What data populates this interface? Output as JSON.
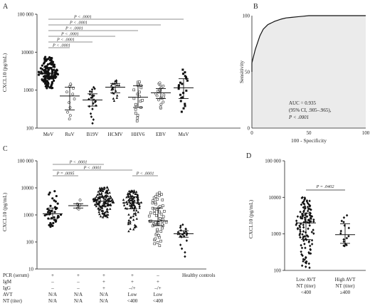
{
  "figure": {
    "panels": {
      "A": {
        "label": "A",
        "ylabel": "CXCL10 (pg/mL)",
        "yticks": [
          "100 000",
          "10000",
          "1000",
          "100"
        ],
        "pvalues": [
          "P < .0001",
          "P < .0001",
          "P < .0001",
          "P < .0001",
          "P < .0001",
          "P < .0001"
        ]
      },
      "B": {
        "label": "B",
        "ylabel": "Sensitivity",
        "xlabel": "100 - Specificity",
        "ticks": [
          "0",
          "50",
          "100"
        ],
        "auc_line1": "AUC = 0.935",
        "auc_line2": "(95% CI, .905–.965),",
        "auc_line3": "P < .0001"
      },
      "C": {
        "label": "C",
        "ylabel": "CXCL10 (pg/mL)",
        "yticks": [
          "100 000",
          "10000",
          "1000",
          "100",
          "10"
        ],
        "pvalues": [
          "P < .0001",
          "P < .0001",
          "P = .0095",
          "P < .0001"
        ],
        "row_labels": [
          "PCR (serum)",
          "IgM",
          "IgG",
          "AVT",
          "NT (titer)"
        ],
        "columns": [
          {
            "pcr": "+",
            "igm": "–",
            "igg": "–",
            "avt": "N/A",
            "nt": "N/A"
          },
          {
            "pcr": "+",
            "igm": "–",
            "igg": "–",
            "avt": "N/A",
            "nt": "N/A"
          },
          {
            "pcr": "+",
            "igm": "+",
            "igg": "+",
            "avt": "N/A",
            "nt": "N/A"
          },
          {
            "pcr": "+",
            "igm": "+",
            "igg": "–/+",
            "avt": "Low",
            "nt": "<400"
          },
          {
            "pcr": "–",
            "igm": "+",
            "igg": "–/+",
            "avt": "Low",
            "nt": "<400"
          }
        ],
        "healthy_label": "Healthy controls"
      },
      "D": {
        "label": "D",
        "ylabel": "CXCL10 (pg/mL)",
        "yticks": [
          "100 000",
          "10000",
          "1000",
          "100"
        ],
        "pvalue": "P = .0402",
        "groups": [
          {
            "l1": "Low AVT",
            "l2": "NT (titer)",
            "l3": "<400"
          },
          {
            "l1": "High AVT",
            "l2": "NT (titer)",
            "l3": "≥400"
          }
        ]
      }
    }
  },
  "chart_data": [
    {
      "type": "scatter",
      "panel": "A",
      "ylabel": "CXCL10 (pg/mL)",
      "yscale": "log",
      "ylim": [
        100,
        100000
      ],
      "categories": [
        "MeV",
        "RuV",
        "B19V",
        "HCMV",
        "HHV6",
        "EBV",
        "MuV"
      ],
      "n": [
        140,
        12,
        22,
        20,
        22,
        22,
        22
      ],
      "median": [
        2800,
        700,
        550,
        1200,
        650,
        850,
        1150
      ],
      "q1": [
        2000,
        300,
        380,
        850,
        350,
        600,
        600
      ],
      "q3": [
        4000,
        1200,
        800,
        1500,
        1300,
        1100,
        2000
      ],
      "min": [
        1100,
        150,
        120,
        500,
        150,
        300,
        250
      ],
      "max": [
        7500,
        1500,
        1200,
        1900,
        1700,
        1600,
        3500
      ],
      "comparisons": [
        [
          "MeV",
          "RuV"
        ],
        [
          "MeV",
          "B19V"
        ],
        [
          "MeV",
          "HCMV"
        ],
        [
          "MeV",
          "HHV6"
        ],
        [
          "MeV",
          "EBV"
        ],
        [
          "MeV",
          "MuV"
        ]
      ]
    },
    {
      "type": "line",
      "panel": "B",
      "xlabel": "100 - Specificity",
      "ylabel": "Sensitivity",
      "xlim": [
        0,
        100
      ],
      "ylim": [
        0,
        100
      ],
      "x": [
        0,
        0,
        1,
        2,
        3,
        4,
        5,
        6,
        7,
        8,
        9,
        10,
        12,
        14,
        16,
        18,
        20,
        23,
        26,
        30,
        35,
        40,
        45,
        50,
        100
      ],
      "y": [
        50,
        58,
        62,
        66,
        70,
        73,
        76,
        79,
        82,
        84,
        86,
        88,
        90,
        92,
        93,
        94,
        95,
        96,
        97,
        98,
        98.5,
        99,
        99.5,
        100,
        100
      ],
      "auc": 0.935,
      "ci": [
        0.905,
        0.965
      ]
    },
    {
      "type": "scatter",
      "panel": "C",
      "ylabel": "CXCL10 (pg/mL)",
      "yscale": "log",
      "ylim": [
        10,
        100000
      ],
      "groups": [
        "+/–/–/N/A",
        "+/–/–/N/A",
        "+/+/+/N/A",
        "+/+/–+/Low",
        "–/+/–+/Low",
        "Healthy controls"
      ],
      "n": [
        40,
        6,
        140,
        100,
        60,
        22
      ],
      "median": [
        1100,
        2200,
        3200,
        2800,
        600,
        200
      ],
      "q1": [
        700,
        1800,
        2100,
        1700,
        400,
        150
      ],
      "q3": [
        1800,
        2600,
        4800,
        4700,
        1800,
        260
      ],
      "min": [
        350,
        1500,
        800,
        250,
        70,
        25
      ],
      "max": [
        8000,
        4000,
        11000,
        8000,
        7000,
        450
      ],
      "comparisons": [
        [
          0,
          2
        ],
        [
          0,
          3
        ],
        [
          0,
          1
        ],
        [
          3,
          4
        ]
      ]
    },
    {
      "type": "scatter",
      "panel": "D",
      "ylabel": "CXCL10 (pg/mL)",
      "yscale": "log",
      "ylim": [
        100,
        100000
      ],
      "groups": [
        "Low AVT NT (titer) <400",
        "High AVT NT (titer) ≥400"
      ],
      "n": [
        120,
        16
      ],
      "median": [
        2000,
        950
      ],
      "q1": [
        700,
        550
      ],
      "q3": [
        3700,
        1900
      ],
      "min": [
        120,
        450
      ],
      "max": [
        10000,
        3300
      ]
    }
  ]
}
